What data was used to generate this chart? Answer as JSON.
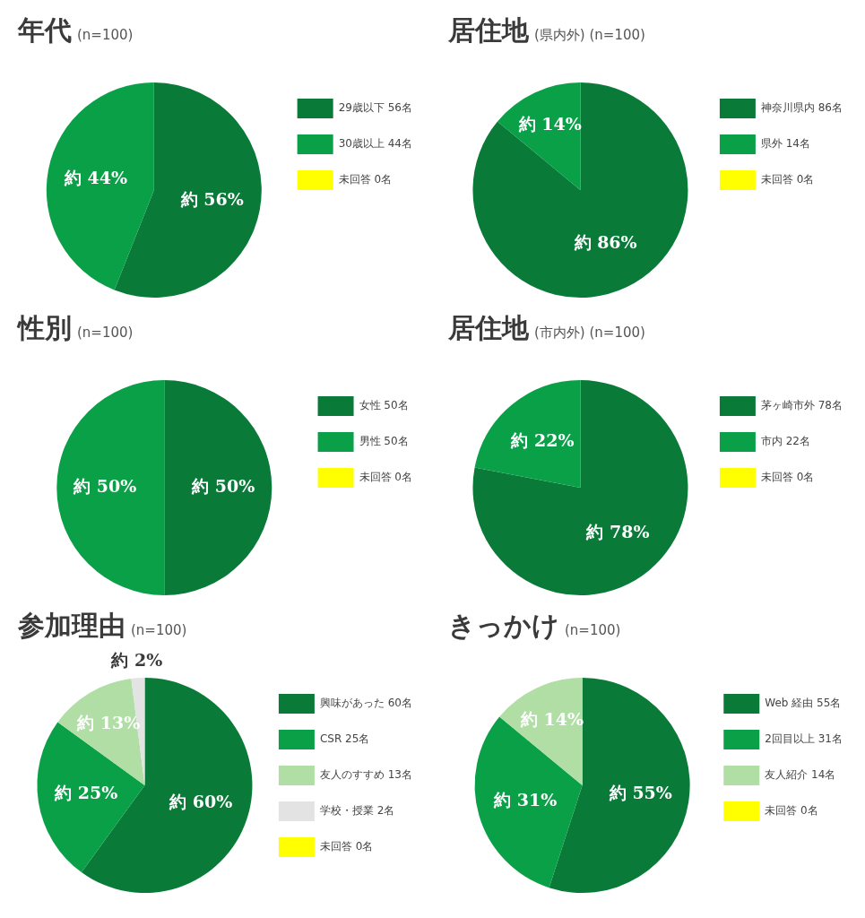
{
  "chart_data": [
    {
      "type": "pie",
      "title": "年代",
      "subtitle": "(n=100)",
      "categories": [
        "29歳以下 56名",
        "30歳以上 44名",
        "未回答 0名"
      ],
      "values": [
        56,
        44,
        0
      ],
      "colors": [
        "#0a7a38",
        "#09a048",
        "#ffff00"
      ],
      "value_labels": [
        "約 56%",
        "約 44%",
        null
      ],
      "legend": "top right"
    },
    {
      "type": "pie",
      "title": "居住地",
      "subtitle": "(県内外) (n=100)",
      "categories": [
        "神奈川県内 86名",
        "県外 14名",
        "未回答 0名"
      ],
      "values": [
        86,
        14,
        0
      ],
      "colors": [
        "#0a7a38",
        "#09a048",
        "#ffff00"
      ],
      "value_labels": [
        "約 86%",
        "約 14%",
        null
      ],
      "legend": "top right"
    },
    {
      "type": "pie",
      "title": "性別",
      "subtitle": "(n=100)",
      "categories": [
        "女性 50名",
        "男性 50名",
        "未回答 0名"
      ],
      "values": [
        50,
        50,
        0
      ],
      "colors": [
        "#0a7a38",
        "#09a048",
        "#ffff00"
      ],
      "value_labels": [
        "約 50%",
        "約 50%",
        null
      ],
      "legend": "top right"
    },
    {
      "type": "pie",
      "title": "居住地",
      "subtitle": "(市内外) (n=100)",
      "categories": [
        "茅ヶ崎市外 78名",
        "市内 22名",
        "未回答 0名"
      ],
      "values": [
        78,
        22,
        0
      ],
      "colors": [
        "#0a7a38",
        "#09a048",
        "#ffff00"
      ],
      "value_labels": [
        "約 78%",
        "約 22%",
        null
      ],
      "legend": "top right"
    },
    {
      "type": "pie",
      "title": "参加理由",
      "subtitle": "(n=100)",
      "categories": [
        "興味があった 60名",
        "CSR 25名",
        "友人のすすめ 13名",
        "学校・授業 2名",
        "未回答 0名"
      ],
      "values": [
        60,
        25,
        13,
        2,
        0
      ],
      "colors": [
        "#0a7a38",
        "#09a048",
        "#b0dea5",
        "#e3e3e3",
        "#ffff00"
      ],
      "value_labels": [
        "約 60%",
        "約 25%",
        "約 13%",
        "約 2%",
        null
      ],
      "legend": "top right"
    },
    {
      "type": "pie",
      "title": "きっかけ",
      "subtitle": "(n=100)",
      "categories": [
        "Web 経由 55名",
        "2回目以上 31名",
        "友人紹介 14名",
        "未回答 0名"
      ],
      "values": [
        55,
        31,
        14,
        0
      ],
      "colors": [
        "#0a7a38",
        "#09a048",
        "#b0dea5",
        "#ffff00"
      ],
      "value_labels": [
        "約 55%",
        "約 31%",
        "約 14%",
        null
      ],
      "legend": "top right"
    }
  ]
}
